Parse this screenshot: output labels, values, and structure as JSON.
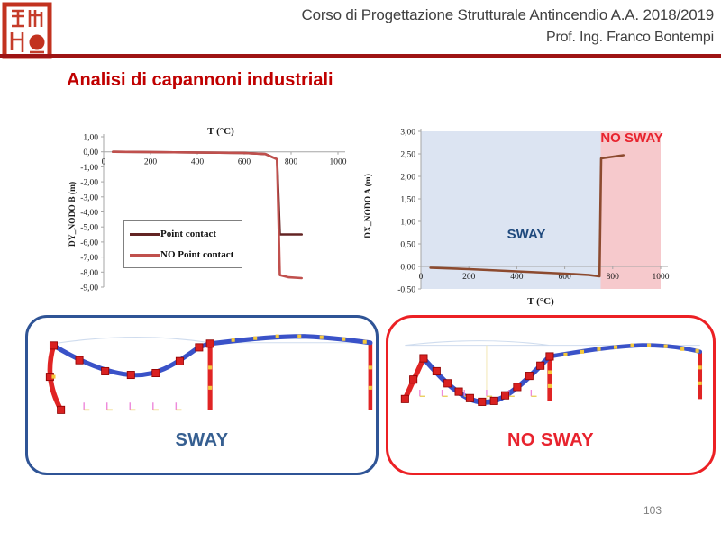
{
  "header": {
    "course_title": "Corso di Progettazione Strutturale Antincendio A.A. 2018/2019",
    "professor": "Prof. Ing. Franco Bontempi",
    "text_color": "#404040",
    "rule_color": "#9E1414",
    "seal_color": "#C2321F"
  },
  "slide": {
    "title": "Analisi di capannoni industriali",
    "title_color": "#C00000",
    "page_number": "103"
  },
  "chart_data": [
    {
      "type": "line",
      "name": "dy-nodo-b-vs-temperature",
      "title": "T (°C)",
      "title_position": "top",
      "ylabel": "DY_NODO B (m)",
      "xlabel": "T (°C)",
      "xlim": [
        0,
        1000
      ],
      "ylim": [
        -9,
        1
      ],
      "xticks": [
        0,
        200,
        400,
        600,
        800,
        1000
      ],
      "yticks": [
        1,
        0,
        -1,
        -2,
        -3,
        -4,
        -5,
        -6,
        -7,
        -8,
        -9
      ],
      "grid": false,
      "legend_position": "inside-left",
      "series": [
        {
          "name": "Point contact",
          "color": "#632423",
          "points": [
            [
              40,
              0
            ],
            [
              200,
              -0.02
            ],
            [
              400,
              -0.05
            ],
            [
              600,
              -0.08
            ],
            [
              690,
              -0.15
            ],
            [
              740,
              -0.5
            ],
            [
              752,
              -5.5
            ],
            [
              845,
              -5.5
            ]
          ]
        },
        {
          "name": "NO Point contact",
          "color": "#C0504D",
          "points": [
            [
              40,
              0
            ],
            [
              200,
              -0.02
            ],
            [
              400,
              -0.05
            ],
            [
              600,
              -0.08
            ],
            [
              690,
              -0.15
            ],
            [
              740,
              -0.5
            ],
            [
              752,
              -8.2
            ],
            [
              790,
              -8.35
            ],
            [
              845,
              -8.4
            ]
          ]
        }
      ]
    },
    {
      "type": "line",
      "name": "dx-nodo-a-vs-temperature",
      "title": "T (°C)",
      "title_position": "bottom",
      "ylabel": "DX_NODO A (m)",
      "xlabel": "T (°C)",
      "xlim": [
        0,
        1000
      ],
      "ylim": [
        -0.5,
        3
      ],
      "xticks": [
        0,
        200,
        400,
        600,
        800,
        1000
      ],
      "yticks": [
        3,
        2.5,
        2,
        1.5,
        1,
        0.5,
        0,
        -0.5
      ],
      "grid": false,
      "regions": [
        {
          "label": "SWAY",
          "from": 0,
          "to": 750,
          "fill": "#DCE4F2",
          "label_color": "#1F497D",
          "label_x": 440,
          "label_y": 0.62
        },
        {
          "label": "NO SWAY",
          "from": 750,
          "to": 1000,
          "fill": "#F6C9CC",
          "label_color": "#E8232E",
          "label_x": 880,
          "label_y": 2.76
        }
      ],
      "series": [
        {
          "name": "DX_NODO A",
          "color": "#8C4A2F",
          "points": [
            [
              40,
              -0.03
            ],
            [
              200,
              -0.06
            ],
            [
              400,
              -0.11
            ],
            [
              600,
              -0.16
            ],
            [
              700,
              -0.19
            ],
            [
              745,
              -0.22
            ],
            [
              752,
              2.4
            ],
            [
              845,
              2.47
            ]
          ]
        }
      ]
    }
  ],
  "panels": [
    {
      "label": "SWAY",
      "border_color": "#2F5496",
      "label_color": "#365F91"
    },
    {
      "label": "NO SWAY",
      "border_color": "#EC2024",
      "label_color": "#E8232E"
    }
  ]
}
